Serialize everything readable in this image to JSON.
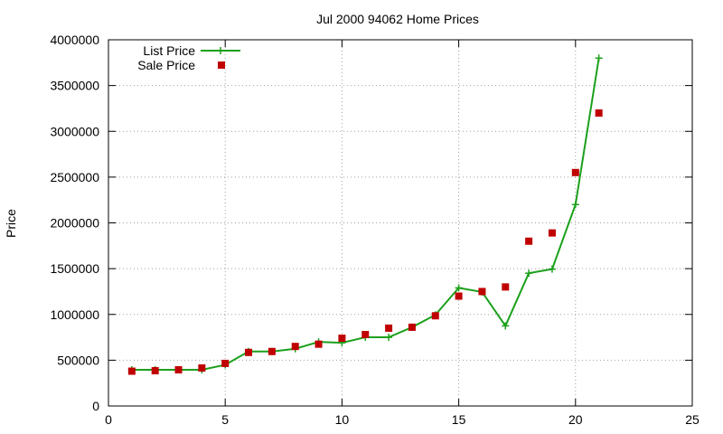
{
  "chart_data": {
    "type": "line",
    "title": "Jul 2000 94062 Home Prices",
    "xlabel": "",
    "ylabel": "Price",
    "xlim": [
      0,
      25
    ],
    "ylim": [
      0,
      4000000
    ],
    "xticks": [
      "0",
      "5",
      "10",
      "15",
      "20",
      "25"
    ],
    "yticks": [
      "0",
      "500000",
      "1000000",
      "1500000",
      "2000000",
      "2500000",
      "3000000",
      "3500000",
      "4000000"
    ],
    "grid": true,
    "legend_position": "top-left",
    "series": [
      {
        "name": "List Price",
        "style": "line-with-cross-markers",
        "color": "#1ca01c",
        "x": [
          1,
          2,
          3,
          4,
          5,
          6,
          7,
          8,
          9,
          10,
          11,
          12,
          13,
          14,
          15,
          16,
          17,
          18,
          19,
          20,
          21
        ],
        "y": [
          395000,
          395000,
          395000,
          395000,
          450000,
          595000,
          595000,
          625000,
          700000,
          690000,
          750000,
          750000,
          860000,
          995000,
          1290000,
          1245000,
          875000,
          1450000,
          1495000,
          2200000,
          3800000
        ]
      },
      {
        "name": "Sale Price",
        "style": "square-markers",
        "color": "#c00000",
        "x": [
          1,
          2,
          3,
          4,
          5,
          6,
          7,
          8,
          9,
          10,
          11,
          12,
          13,
          14,
          15,
          16,
          17,
          18,
          19,
          20,
          21
        ],
        "y": [
          380000,
          385000,
          395000,
          415000,
          465000,
          585000,
          595000,
          650000,
          675000,
          740000,
          780000,
          850000,
          860000,
          985000,
          1200000,
          1250000,
          1300000,
          1800000,
          1890000,
          2550000,
          3200000
        ]
      }
    ]
  }
}
